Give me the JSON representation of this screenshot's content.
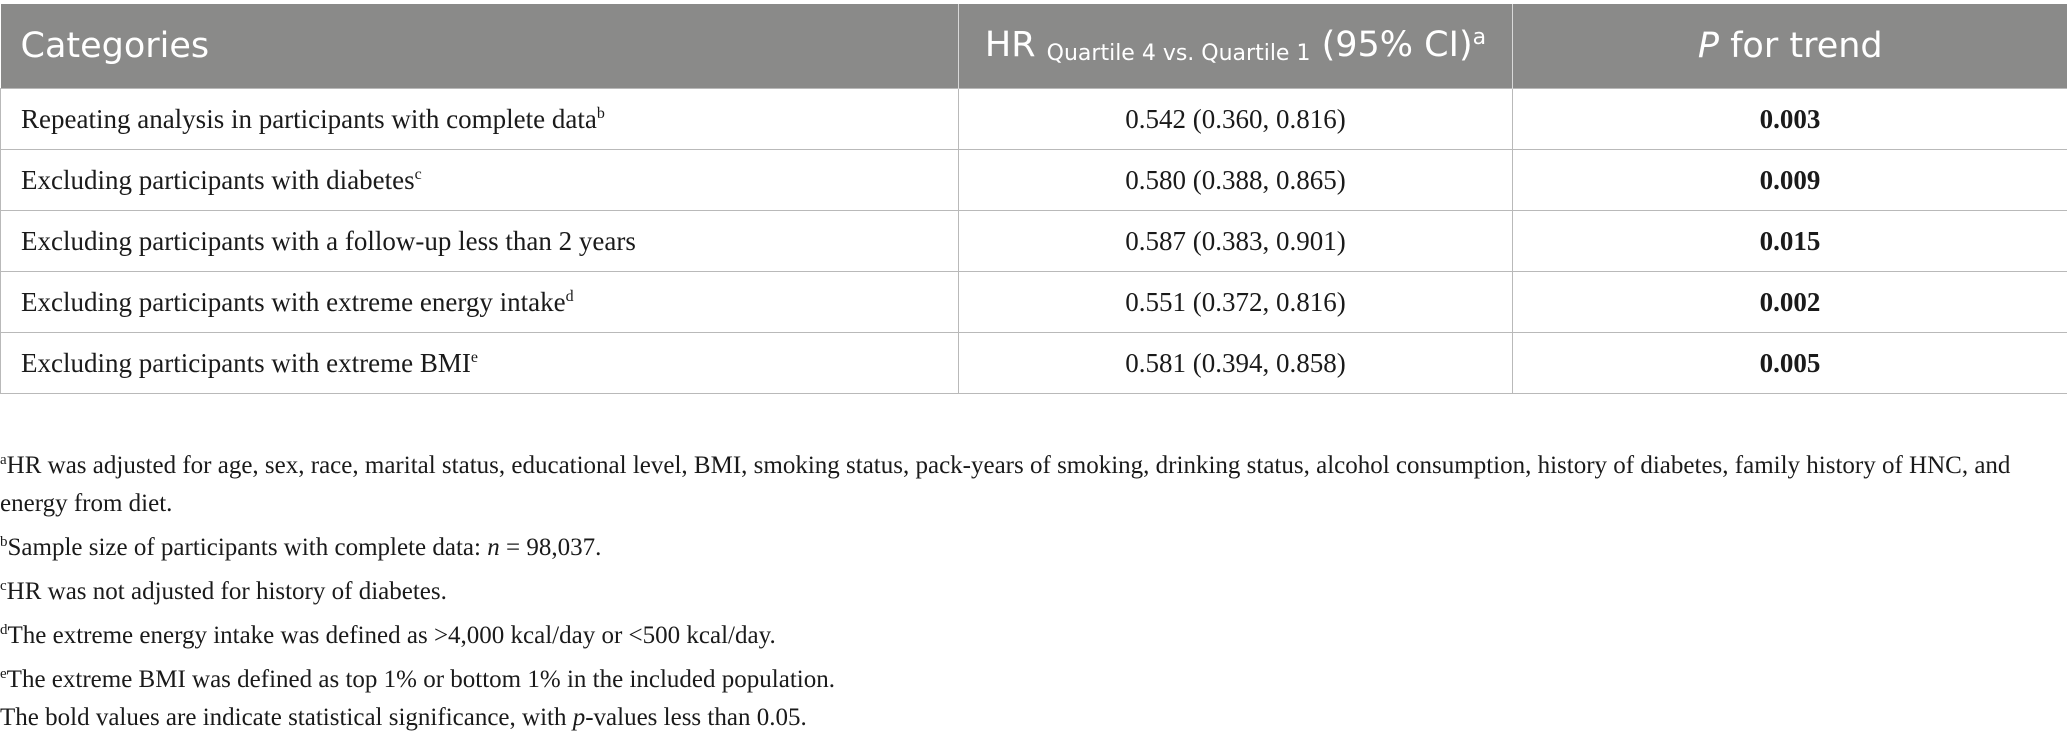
{
  "table": {
    "headers": {
      "categories": "Categories",
      "hr_prefix": "HR",
      "hr_sub": "Quartile 4 vs. Quartile 1",
      "hr_ci": "(95% CI)",
      "hr_sup": "a",
      "p_italic": "P",
      "p_rest": " for trend"
    },
    "rows": [
      {
        "category": "Repeating analysis in participants with complete data",
        "sup": "b",
        "hr": "0.542 (0.360, 0.816)",
        "p": "0.003"
      },
      {
        "category": "Excluding participants with diabetes",
        "sup": "c",
        "hr": "0.580 (0.388, 0.865)",
        "p": "0.009"
      },
      {
        "category": "Excluding participants with a follow-up less than 2 years",
        "sup": "",
        "hr": "0.587 (0.383, 0.901)",
        "p": "0.015"
      },
      {
        "category": "Excluding participants with extreme energy intake",
        "sup": "d",
        "hr": "0.551 (0.372, 0.816)",
        "p": "0.002"
      },
      {
        "category": "Excluding participants with extreme BMI",
        "sup": "e",
        "hr": "0.581 (0.394, 0.858)",
        "p": "0.005"
      }
    ]
  },
  "footnotes": {
    "a": {
      "sup": "a",
      "text": "HR was adjusted for age, sex, race, marital status, educational level, BMI, smoking status, pack-years of smoking, drinking status, alcohol consumption, history of diabetes, family history of HNC, and energy from diet."
    },
    "b": {
      "sup": "b",
      "pre": "Sample size of participants with complete data: ",
      "n": "n",
      "post": " = 98,037."
    },
    "c": {
      "sup": "c",
      "text": "HR was not adjusted for history of diabetes."
    },
    "d": {
      "sup": "d",
      "text": "The extreme energy intake was defined as >4,000 kcal/day or <500 kcal/day."
    },
    "e": {
      "sup": "e",
      "text": "The extreme BMI was defined as top 1% or bottom 1% in the included population."
    },
    "bold": {
      "pre": "The bold values are indicate statistical significance, with ",
      "p": "p",
      "post": "-values less than 0.05."
    }
  }
}
